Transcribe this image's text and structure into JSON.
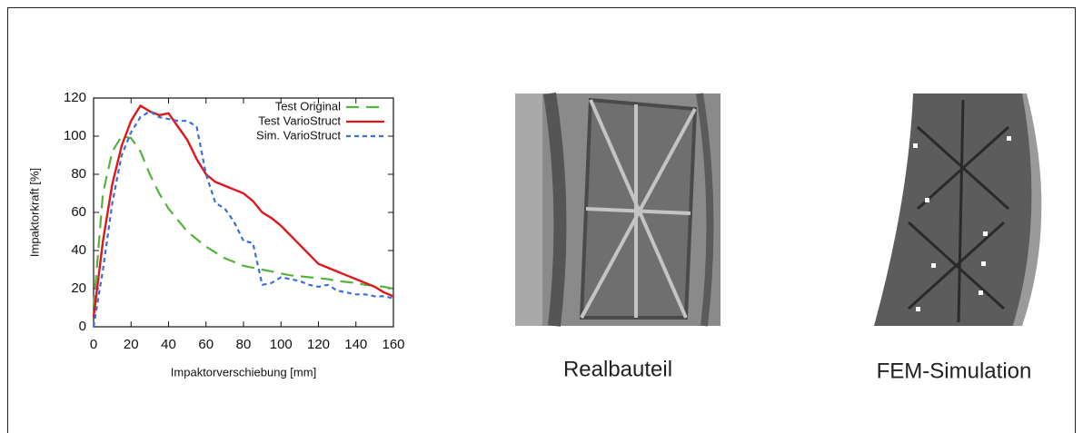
{
  "chart_data": {
    "type": "line",
    "x_label": "Impaktorverschiebung [mm]",
    "y_label": "Impaktorkraft [%]",
    "x": [
      0,
      5,
      10,
      15,
      20,
      25,
      30,
      35,
      40,
      45,
      50,
      55,
      60,
      65,
      70,
      75,
      80,
      85,
      90,
      95,
      100,
      105,
      110,
      115,
      120,
      125,
      130,
      135,
      140,
      145,
      150,
      155,
      160
    ],
    "series": [
      {
        "name": "Test Original",
        "color": "#54b33a",
        "dash": "14,8",
        "values": [
          10,
          70,
          92,
          100,
          99,
          92,
          80,
          70,
          62,
          56,
          50,
          46,
          42,
          39,
          36,
          34,
          32,
          31,
          30,
          29,
          28,
          27,
          26.5,
          26,
          25.5,
          25,
          24,
          23.5,
          23,
          22,
          21.5,
          21,
          20
        ]
      },
      {
        "name": "Test VarioStruct",
        "color": "#e0161a",
        "dash": "",
        "values": [
          5,
          45,
          75,
          95,
          108,
          116,
          113,
          111,
          112,
          105,
          98,
          88,
          80,
          76,
          74,
          72,
          70,
          66,
          60,
          57,
          53,
          48,
          43,
          38,
          33,
          31,
          29,
          27,
          25,
          23,
          21,
          18,
          16
        ]
      },
      {
        "name": "Sim. VarioStruct",
        "color": "#3a6fd8",
        "dash": "5,4",
        "values": [
          0,
          30,
          65,
          90,
          102,
          110,
          113,
          110,
          109,
          108,
          108,
          105,
          80,
          65,
          62,
          55,
          45,
          44,
          22,
          23,
          26,
          25,
          24,
          22,
          21,
          22,
          19,
          18,
          17,
          17,
          16,
          16,
          15
        ]
      }
    ],
    "xlim": [
      0,
      160
    ],
    "xticks": [
      0,
      20,
      40,
      60,
      80,
      100,
      120,
      140,
      160
    ],
    "ylim": [
      0,
      120
    ],
    "yticks": [
      0,
      20,
      40,
      60,
      80,
      100,
      120
    ],
    "legend": "upper right"
  },
  "panels": [
    {
      "caption": "Realbauteil"
    },
    {
      "caption": "FEM-Simulation"
    }
  ]
}
